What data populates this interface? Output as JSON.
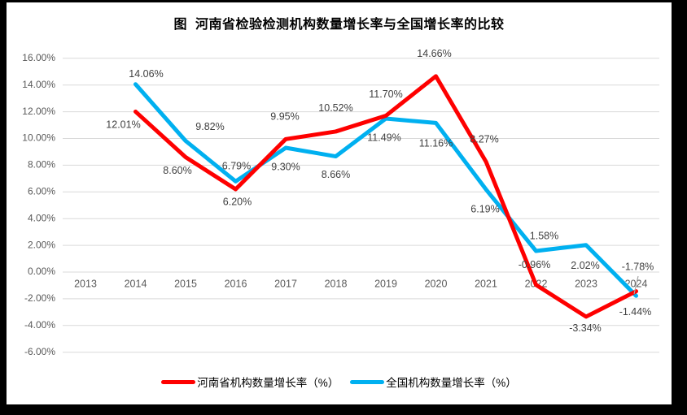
{
  "window": {
    "frame_color": "#000000",
    "canvas_color": "#ffffff"
  },
  "styles": {
    "gridline_color": "#d9d9d9",
    "axis_text_color": "#595959",
    "data_label_color": "#404040",
    "title_color": "#000000",
    "henan_color": "#fe0000",
    "national_color": "#00b0f0",
    "leader_line_color": "#a6a6a6"
  },
  "chart_data": {
    "type": "line",
    "title": "图  河南省检验检测机构数量增长率与全国增长率的比较",
    "categories": [
      "2013",
      "2014",
      "2015",
      "2016",
      "2017",
      "2018",
      "2019",
      "2020",
      "2021",
      "2022",
      "2023",
      "2024"
    ],
    "series": [
      {
        "name": "河南省机构数量增长率（%）",
        "color": "#fe0000",
        "values": [
          null,
          12.01,
          8.6,
          6.2,
          9.95,
          10.52,
          11.7,
          14.66,
          8.27,
          -0.96,
          -3.34,
          -1.44
        ],
        "point_labels": [
          "",
          "12.01%",
          "8.60%",
          "6.20%",
          "9.95%",
          "10.52%",
          "11.70%",
          "14.66%",
          "8.27%",
          "-0.96%",
          "-3.34%",
          "-1.44%"
        ],
        "label_offsets": [
          [
            0,
            0
          ],
          [
            -15,
            17
          ],
          [
            -10,
            17
          ],
          [
            2,
            16
          ],
          [
            -1,
            -27
          ],
          [
            0,
            -28
          ],
          [
            0,
            -26
          ],
          [
            -2,
            -27
          ],
          [
            -2,
            -27
          ],
          [
            -2,
            -24
          ],
          [
            -1,
            15
          ],
          [
            -1,
            26
          ]
        ]
      },
      {
        "name": "全国机构数量增长率（%）",
        "color": "#00b0f0",
        "values": [
          null,
          14.06,
          9.82,
          6.79,
          9.3,
          8.66,
          11.49,
          11.16,
          6.19,
          1.58,
          2.02,
          -1.78
        ],
        "point_labels": [
          "",
          "14.06%",
          "9.82%",
          "6.79%",
          "9.30%",
          "8.66%",
          "11.49%",
          "11.16%",
          "6.19%",
          "1.58%",
          "2.02%",
          "-1.78%"
        ],
        "label_offsets": [
          [
            0,
            0
          ],
          [
            13,
            -12
          ],
          [
            30,
            -17
          ],
          [
            1,
            -18
          ],
          [
            0,
            24
          ],
          [
            0,
            23
          ],
          [
            -2,
            24
          ],
          [
            0,
            26
          ],
          [
            -1,
            25
          ],
          [
            10,
            -18
          ],
          [
            -1,
            26
          ],
          [
            2,
            -35
          ]
        ]
      }
    ],
    "y_axis": {
      "min": -6,
      "max": 16,
      "step": 2,
      "tick_labels": [
        "16.00%",
        "14.00%",
        "12.00%",
        "10.00%",
        "8.00%",
        "6.00%",
        "4.00%",
        "2.00%",
        "0.00%",
        "-2.00%",
        "-4.00%",
        "-6.00%"
      ]
    },
    "grid": true,
    "legend_position": "bottom",
    "annotations": {
      "leader_line": {
        "from": [
          776,
          337
        ],
        "to": [
          771,
          359
        ]
      }
    }
  }
}
